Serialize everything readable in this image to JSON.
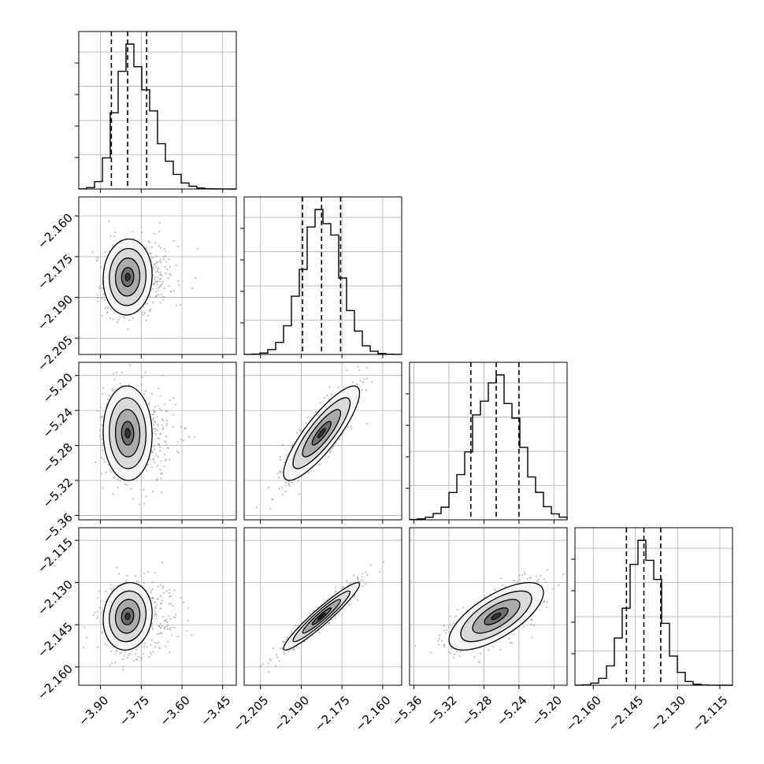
{
  "chart_data": {
    "type": "corner",
    "grid": true,
    "colors": {
      "ink": "#000000",
      "grid": "#b0b0b0",
      "scatter": "#8c8c8c",
      "density_shades": [
        "#f5f5f5",
        "#d9d9d9",
        "#aaaaaa",
        "#6e6e6e",
        "#333333"
      ]
    },
    "parameters": [
      {
        "index": 0,
        "range": [
          -3.98,
          -3.4
        ],
        "ticks": [
          -3.9,
          -3.75,
          -3.6,
          -3.45
        ],
        "tick_labels": [
          "−3.90",
          "−3.75",
          "−3.60",
          "−3.45"
        ],
        "quantiles": [
          -3.86,
          -3.8,
          -3.73
        ],
        "median": -3.8,
        "sigma": 0.045,
        "skew": true
      },
      {
        "index": 1,
        "range": [
          -2.211,
          -2.153
        ],
        "ticks": [
          -2.205,
          -2.19,
          -2.175,
          -2.16
        ],
        "tick_labels": [
          "−2.205",
          "−2.190",
          "−2.175",
          "−2.160"
        ],
        "quantiles": [
          -2.1895,
          -2.1825,
          -2.1755
        ],
        "median": -2.1825,
        "sigma": 0.007,
        "skew": false
      },
      {
        "index": 2,
        "range": [
          -5.365,
          -5.185
        ],
        "ticks": [
          -5.36,
          -5.32,
          -5.28,
          -5.24,
          -5.2
        ],
        "tick_labels": [
          "−5.36",
          "−5.32",
          "−5.28",
          "−5.24",
          "−5.20"
        ],
        "quantiles": [
          -5.295,
          -5.266,
          -5.24
        ],
        "median": -5.266,
        "sigma": 0.027,
        "skew": false
      },
      {
        "index": 3,
        "range": [
          -2.1665,
          -2.1105
        ],
        "ticks": [
          -2.16,
          -2.145,
          -2.13,
          -2.115
        ],
        "tick_labels": [
          "−2.160",
          "−2.145",
          "−2.130",
          "−2.115"
        ],
        "quantiles": [
          -2.1482,
          -2.142,
          -2.136
        ],
        "median": -2.142,
        "sigma": 0.006,
        "skew": false
      }
    ],
    "correlations": {
      "1-0": 0.05,
      "2-0": -0.03,
      "2-1": 0.85,
      "3-0": 0.1,
      "3-1": 0.95,
      "3-2": 0.7
    },
    "histogram_bins": 20,
    "quantile_levels": [
      0.16,
      0.5,
      0.84
    ]
  }
}
